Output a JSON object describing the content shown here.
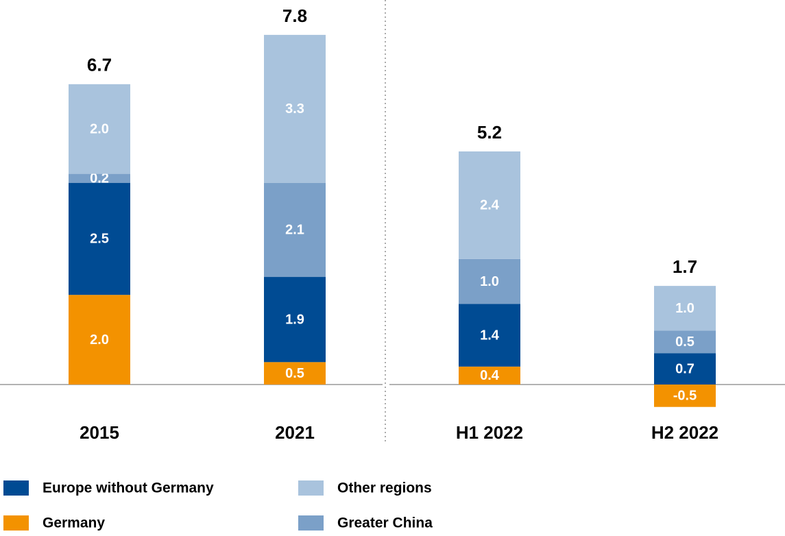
{
  "chart_data": {
    "type": "stacked_bar",
    "categories": [
      "2015",
      "2021",
      "H1 2022",
      "H2 2022"
    ],
    "series": [
      {
        "name": "Germany",
        "color": "#f39200",
        "values": [
          2.0,
          0.5,
          0.4,
          -0.5
        ],
        "value_labels": [
          "2.0",
          "0.5",
          "0.4",
          "-0.5"
        ]
      },
      {
        "name": "Europe without Germany",
        "color": "#004b93",
        "values": [
          2.5,
          1.9,
          1.4,
          0.7
        ],
        "value_labels": [
          "2.5",
          "1.9",
          "1.4",
          "0.7"
        ]
      },
      {
        "name": "Greater China",
        "color": "#7ba0c8",
        "values": [
          0.2,
          2.1,
          1.0,
          0.5
        ],
        "value_labels": [
          "0.2",
          "2.1",
          "1.0",
          "0.5"
        ]
      },
      {
        "name": "Other regions",
        "color": "#a9c3dd",
        "values": [
          2.0,
          3.3,
          2.4,
          1.0
        ],
        "value_labels": [
          "2.0",
          "3.3",
          "2.4",
          "1.0"
        ]
      }
    ],
    "totals": [
      6.7,
      7.8,
      5.2,
      1.7
    ]
  }
}
